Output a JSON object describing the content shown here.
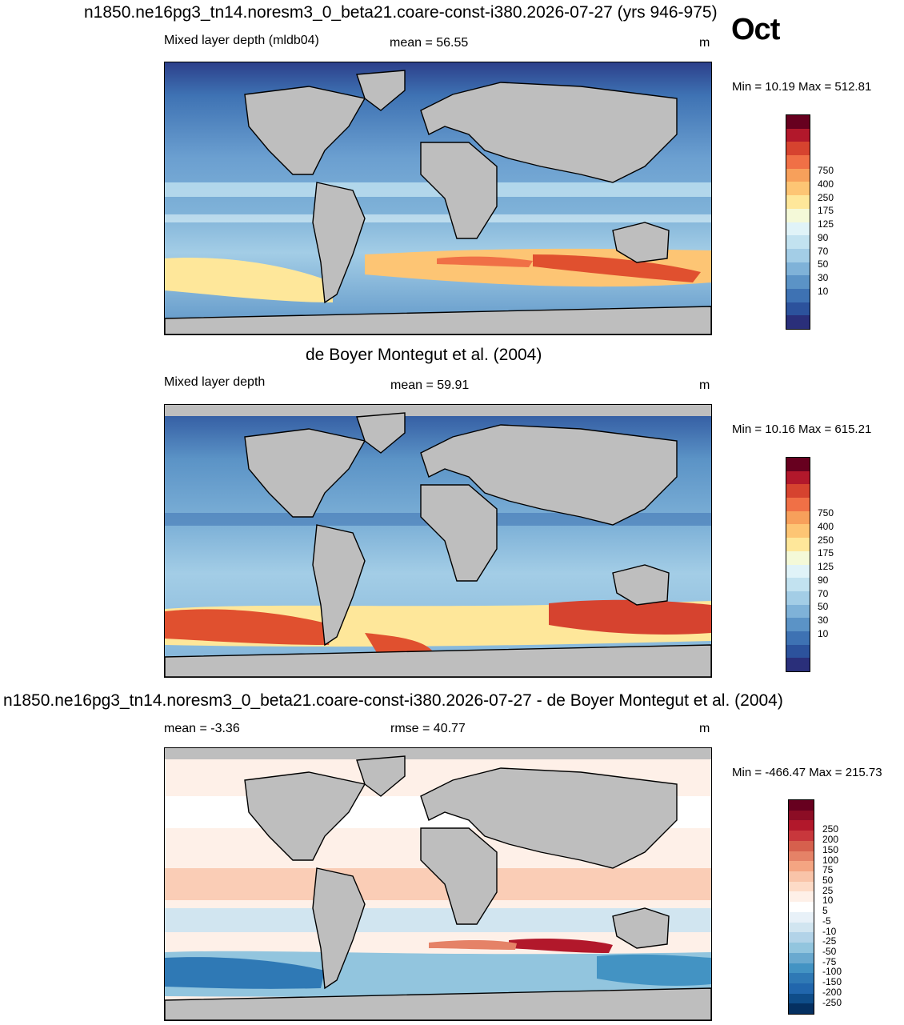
{
  "title_top": "n1850.ne16pg3_tn14.noresm3_0_beta21.coare-const-i380.2026-07-27 (yrs 946-975)",
  "month": "Oct",
  "panel1": {
    "left": "Mixed layer depth (mldb04)",
    "center": "mean =  56.55",
    "unit": "m",
    "minmax": "Min =  10.19 Max = 512.81"
  },
  "title_mid": "de Boyer Montegut et al. (2004)",
  "panel2": {
    "left": "Mixed layer depth",
    "center": "mean =  59.91",
    "unit": "m",
    "minmax": "Min =  10.16 Max = 615.21"
  },
  "title_bot": "n1850.ne16pg3_tn14.noresm3_0_beta21.coare-const-i380.2026-07-27 - de Boyer Montegut et al. (2004)",
  "panel3": {
    "left": "mean =  -3.36",
    "center": "rmse =  40.77",
    "unit": "m",
    "minmax": "Min = -466.47 Max = 215.73"
  },
  "colorbar_mld": {
    "labels": [
      "750",
      "400",
      "250",
      "175",
      "125",
      "90",
      "70",
      "50",
      "30",
      "10"
    ],
    "colors": [
      "#67001f",
      "#b2182b",
      "#d6432f",
      "#f07046",
      "#f7a05b",
      "#fdc574",
      "#fee79a",
      "#f4f9d8",
      "#e0f3f8",
      "#c2e2f0",
      "#a3cde6",
      "#7fb2d8",
      "#5b93c6",
      "#3e72b3",
      "#2c529c",
      "#2a2f7a"
    ]
  },
  "colorbar_diff": {
    "labels": [
      "250",
      "200",
      "150",
      "100",
      "75",
      "50",
      "25",
      "10",
      "5",
      "-5",
      "-10",
      "-25",
      "-50",
      "-75",
      "-100",
      "-150",
      "-200",
      "-250"
    ],
    "colors": [
      "#67001f",
      "#8c0d25",
      "#b2182b",
      "#c8373c",
      "#d6604d",
      "#e58267",
      "#f4a582",
      "#f9c4a9",
      "#fddbc7",
      "#fef0e8",
      "#ffffff",
      "#e8f1f8",
      "#d1e5f0",
      "#b2d3e8",
      "#92c5de",
      "#6aa9cf",
      "#4393c3",
      "#2f79b5",
      "#2166ac",
      "#0f4d89",
      "#053061"
    ]
  },
  "colors": {
    "land": "#bebebe",
    "ocean_shallow": "#2f5aa8",
    "ocean_mid": "#6b9fd0",
    "ocean_light": "#b7d6ea",
    "warm": "#f5d48e",
    "hot": "#e0502f"
  }
}
